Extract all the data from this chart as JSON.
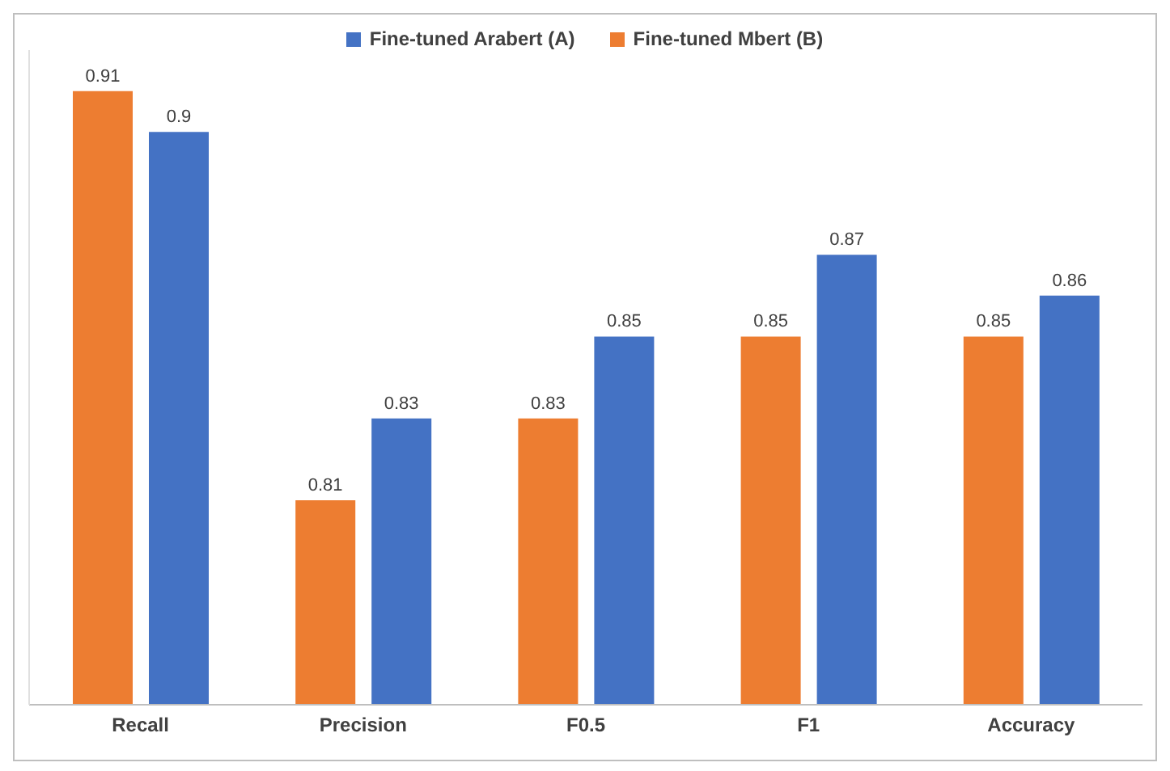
{
  "chart_data": {
    "type": "bar",
    "categories": [
      "Recall",
      "Precision",
      "F0.5",
      "F1",
      "Accuracy"
    ],
    "series": [
      {
        "name": "Fine-tuned Mbert (B)",
        "color": "#ed7d31",
        "values": [
          0.91,
          0.81,
          0.83,
          0.85,
          0.85
        ]
      },
      {
        "name": "Fine-tuned Arabert (A)",
        "color": "#4472c4",
        "values": [
          0.9,
          0.83,
          0.85,
          0.87,
          0.86
        ]
      }
    ],
    "ylim": [
      0.76,
      0.92
    ],
    "tick_labels": "x",
    "data_labels": true,
    "grid": false,
    "legend": "top"
  }
}
